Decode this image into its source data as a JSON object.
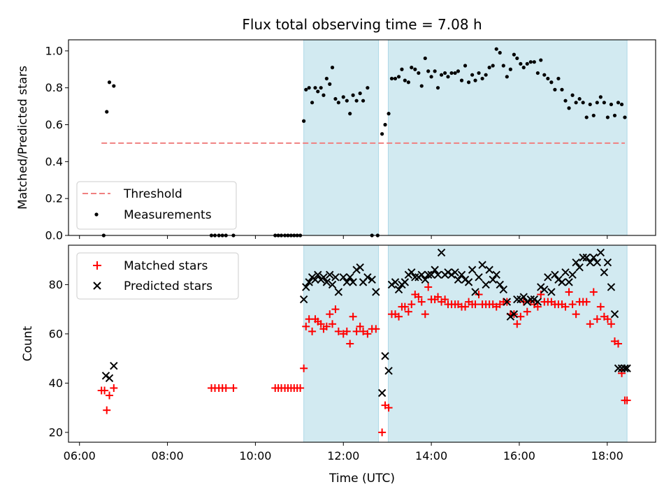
{
  "chart_data": [
    {
      "type": "scatter",
      "title": "Flux total observing time = 7.08 h",
      "ylabel": "Matched/Predicted stars",
      "xlabel": "",
      "xlim": [
        5.75,
        19.1
      ],
      "ylim": [
        0,
        1.06
      ],
      "y_ticks": [
        "0.0",
        "0.2",
        "0.4",
        "0.6",
        "0.8",
        "1.0"
      ],
      "y_tick_values": [
        0,
        0.2,
        0.4,
        0.6,
        0.8,
        1.0
      ],
      "threshold": {
        "value": 0.5,
        "x": [
          6.5,
          18.4
        ],
        "label": "Threshold",
        "color": "#f08080"
      },
      "shaded_regions": [
        [
          11.1,
          12.8
        ],
        [
          13.02,
          18.45
        ]
      ],
      "shade_color": "#add8e6",
      "legend": {
        "placement": "lower-left",
        "entries": [
          "Threshold",
          "Measurements"
        ]
      },
      "series": [
        {
          "name": "Measurements",
          "color": "#000000",
          "x": [
            6.55,
            6.62,
            6.68,
            6.78,
            9.0,
            9.08,
            9.17,
            9.25,
            9.33,
            9.5,
            10.45,
            10.52,
            10.59,
            10.67,
            10.74,
            10.81,
            10.88,
            10.95,
            11.02,
            11.1,
            11.15,
            11.22,
            11.29,
            11.36,
            11.42,
            11.49,
            11.55,
            11.62,
            11.69,
            11.75,
            11.82,
            11.89,
            12.0,
            12.08,
            12.15,
            12.22,
            12.3,
            12.38,
            12.45,
            12.55,
            12.65,
            12.78,
            12.88,
            12.95,
            13.03,
            13.1,
            13.18,
            13.26,
            13.33,
            13.4,
            13.48,
            13.55,
            13.63,
            13.71,
            13.78,
            13.86,
            13.93,
            14.0,
            14.08,
            14.15,
            14.23,
            14.31,
            14.38,
            14.46,
            14.54,
            14.61,
            14.69,
            14.77,
            14.85,
            14.93,
            15.0,
            15.08,
            15.16,
            15.24,
            15.32,
            15.4,
            15.48,
            15.56,
            15.64,
            15.72,
            15.8,
            15.88,
            15.95,
            16.03,
            16.1,
            16.18,
            16.26,
            16.34,
            16.42,
            16.49,
            16.57,
            16.65,
            16.73,
            16.81,
            16.89,
            16.97,
            17.05,
            17.13,
            17.21,
            17.29,
            17.37,
            17.45,
            17.53,
            17.61,
            17.69,
            17.77,
            17.85,
            17.93,
            18.01,
            18.09,
            18.17,
            18.25,
            18.33,
            18.4
          ],
          "y": [
            0.0,
            0.67,
            0.83,
            0.81,
            0.0,
            0.0,
            0.0,
            0.0,
            0.0,
            0.0,
            0.0,
            0.0,
            0.0,
            0.0,
            0.0,
            0.0,
            0.0,
            0.0,
            0.0,
            0.62,
            0.79,
            0.8,
            0.72,
            0.8,
            0.78,
            0.8,
            0.76,
            0.85,
            0.82,
            0.91,
            0.74,
            0.72,
            0.75,
            0.73,
            0.66,
            0.76,
            0.73,
            0.77,
            0.73,
            0.8,
            0.0,
            0.0,
            0.55,
            0.6,
            0.66,
            0.85,
            0.85,
            0.86,
            0.9,
            0.84,
            0.83,
            0.91,
            0.9,
            0.88,
            0.81,
            0.96,
            0.89,
            0.86,
            0.89,
            0.8,
            0.87,
            0.88,
            0.86,
            0.88,
            0.88,
            0.89,
            0.84,
            0.92,
            0.83,
            0.87,
            0.84,
            0.88,
            0.85,
            0.87,
            0.91,
            0.92,
            1.01,
            0.99,
            0.92,
            0.86,
            0.9,
            0.98,
            0.96,
            0.93,
            0.91,
            0.93,
            0.94,
            0.94,
            0.88,
            0.95,
            0.87,
            0.85,
            0.83,
            0.79,
            0.85,
            0.79,
            0.73,
            0.69,
            0.76,
            0.72,
            0.74,
            0.72,
            0.64,
            0.71,
            0.65,
            0.72,
            0.75,
            0.72,
            0.64,
            0.71,
            0.65,
            0.72,
            0.71,
            0.64
          ]
        }
      ]
    },
    {
      "type": "scatter",
      "title": "",
      "ylabel": "Count",
      "xlabel": "Time (UTC)",
      "xlim": [
        5.75,
        19.1
      ],
      "ylim": [
        16,
        96
      ],
      "x_ticks": [
        "06:00",
        "08:00",
        "10:00",
        "12:00",
        "14:00",
        "16:00",
        "18:00"
      ],
      "x_tick_values": [
        6,
        8,
        10,
        12,
        14,
        16,
        18
      ],
      "y_ticks": [
        "20",
        "40",
        "60",
        "80"
      ],
      "y_tick_values": [
        20,
        40,
        60,
        80
      ],
      "shaded_regions": [
        [
          11.1,
          12.8
        ],
        [
          13.02,
          18.45
        ]
      ],
      "shade_color": "#add8e6",
      "legend": {
        "placement": "upper-left",
        "entries": [
          "Matched stars",
          "Predicted stars"
        ]
      },
      "series": [
        {
          "name": "Matched stars",
          "marker": "+",
          "color": "#ff0000",
          "x": [
            6.5,
            6.57,
            6.62,
            6.68,
            6.78,
            9.0,
            9.08,
            9.17,
            9.25,
            9.33,
            9.5,
            10.45,
            10.52,
            10.59,
            10.67,
            10.74,
            10.81,
            10.88,
            10.95,
            11.02,
            11.1,
            11.15,
            11.22,
            11.29,
            11.36,
            11.42,
            11.49,
            11.55,
            11.62,
            11.69,
            11.75,
            11.82,
            11.89,
            12.0,
            12.08,
            12.15,
            12.22,
            12.3,
            12.38,
            12.45,
            12.55,
            12.65,
            12.74,
            12.88,
            12.95,
            13.03,
            13.1,
            13.18,
            13.26,
            13.33,
            13.4,
            13.48,
            13.55,
            13.63,
            13.71,
            13.78,
            13.86,
            13.93,
            14.0,
            14.08,
            14.15,
            14.23,
            14.31,
            14.38,
            14.46,
            14.54,
            14.61,
            14.69,
            14.77,
            14.85,
            14.93,
            15.0,
            15.08,
            15.16,
            15.24,
            15.32,
            15.4,
            15.48,
            15.56,
            15.64,
            15.72,
            15.8,
            15.88,
            15.95,
            16.03,
            16.1,
            16.18,
            16.26,
            16.34,
            16.42,
            16.49,
            16.57,
            16.65,
            16.73,
            16.81,
            16.89,
            16.97,
            17.05,
            17.13,
            17.21,
            17.29,
            17.37,
            17.45,
            17.53,
            17.61,
            17.69,
            17.77,
            17.85,
            17.93,
            18.01,
            18.09,
            18.17,
            18.25,
            18.33,
            18.4,
            18.45
          ],
          "y": [
            37,
            37,
            29,
            35,
            38,
            38,
            38,
            38,
            38,
            38,
            38,
            38,
            38,
            38,
            38,
            38,
            38,
            38,
            38,
            38,
            46,
            63,
            66,
            61,
            66,
            65,
            64,
            62,
            63,
            68,
            64,
            70,
            61,
            60,
            61,
            56,
            67,
            61,
            63,
            61,
            60,
            62,
            62,
            20,
            31,
            30,
            68,
            68,
            67,
            71,
            71,
            69,
            72,
            76,
            75,
            73,
            68,
            79,
            74,
            74,
            75,
            73,
            74,
            72,
            72,
            72,
            72,
            71,
            71,
            73,
            72,
            72,
            76,
            72,
            72,
            72,
            72,
            71,
            72,
            73,
            73,
            68,
            68,
            64,
            67,
            73,
            69,
            73,
            72,
            71,
            76,
            73,
            73,
            73,
            72,
            72,
            72,
            71,
            77,
            72,
            68,
            73,
            73,
            73,
            64,
            77,
            66,
            71,
            67,
            66,
            64,
            57,
            56,
            44,
            33,
            33
          ],
          "note_skip": []
        },
        {
          "name": "Predicted stars",
          "marker": "x",
          "color": "#000000",
          "x": [
            6.6,
            6.68,
            6.78,
            11.1,
            11.15,
            11.22,
            11.29,
            11.36,
            11.42,
            11.49,
            11.55,
            11.62,
            11.69,
            11.75,
            11.82,
            11.89,
            12.0,
            12.08,
            12.15,
            12.22,
            12.3,
            12.38,
            12.45,
            12.55,
            12.65,
            12.74,
            12.88,
            12.95,
            13.03,
            13.1,
            13.18,
            13.26,
            13.33,
            13.4,
            13.48,
            13.55,
            13.63,
            13.71,
            13.78,
            13.86,
            13.93,
            14.0,
            14.08,
            14.15,
            14.23,
            14.31,
            14.38,
            14.46,
            14.54,
            14.61,
            14.69,
            14.77,
            14.85,
            14.93,
            15.0,
            15.08,
            15.16,
            15.24,
            15.32,
            15.4,
            15.48,
            15.56,
            15.64,
            15.72,
            15.8,
            15.88,
            15.95,
            16.03,
            16.1,
            16.18,
            16.26,
            16.34,
            16.42,
            16.49,
            16.57,
            16.65,
            16.73,
            16.81,
            16.89,
            16.97,
            17.05,
            17.13,
            17.21,
            17.29,
            17.37,
            17.45,
            17.53,
            17.61,
            17.69,
            17.77,
            17.85,
            17.93,
            18.01,
            18.09,
            18.17,
            18.25,
            18.33,
            18.4,
            18.45
          ],
          "y": [
            43,
            42,
            47,
            74,
            79,
            81,
            83,
            82,
            84,
            82,
            83,
            81,
            84,
            80,
            83,
            77,
            83,
            81,
            83,
            81,
            86,
            87,
            81,
            83,
            82,
            77,
            36,
            51,
            45,
            80,
            81,
            78,
            80,
            81,
            84,
            85,
            83,
            83,
            84,
            82,
            84,
            84,
            86,
            84,
            93,
            84,
            85,
            84,
            85,
            82,
            84,
            82,
            81,
            86,
            77,
            83,
            88,
            80,
            86,
            82,
            84,
            80,
            78,
            73,
            67,
            68,
            74,
            74,
            75,
            73,
            74,
            74,
            73,
            79,
            78,
            83,
            77,
            84,
            82,
            81,
            85,
            81,
            84,
            89,
            87,
            91,
            91,
            89,
            91,
            89,
            93,
            85,
            89,
            79,
            68,
            46,
            46,
            46,
            46
          ]
        }
      ]
    }
  ]
}
